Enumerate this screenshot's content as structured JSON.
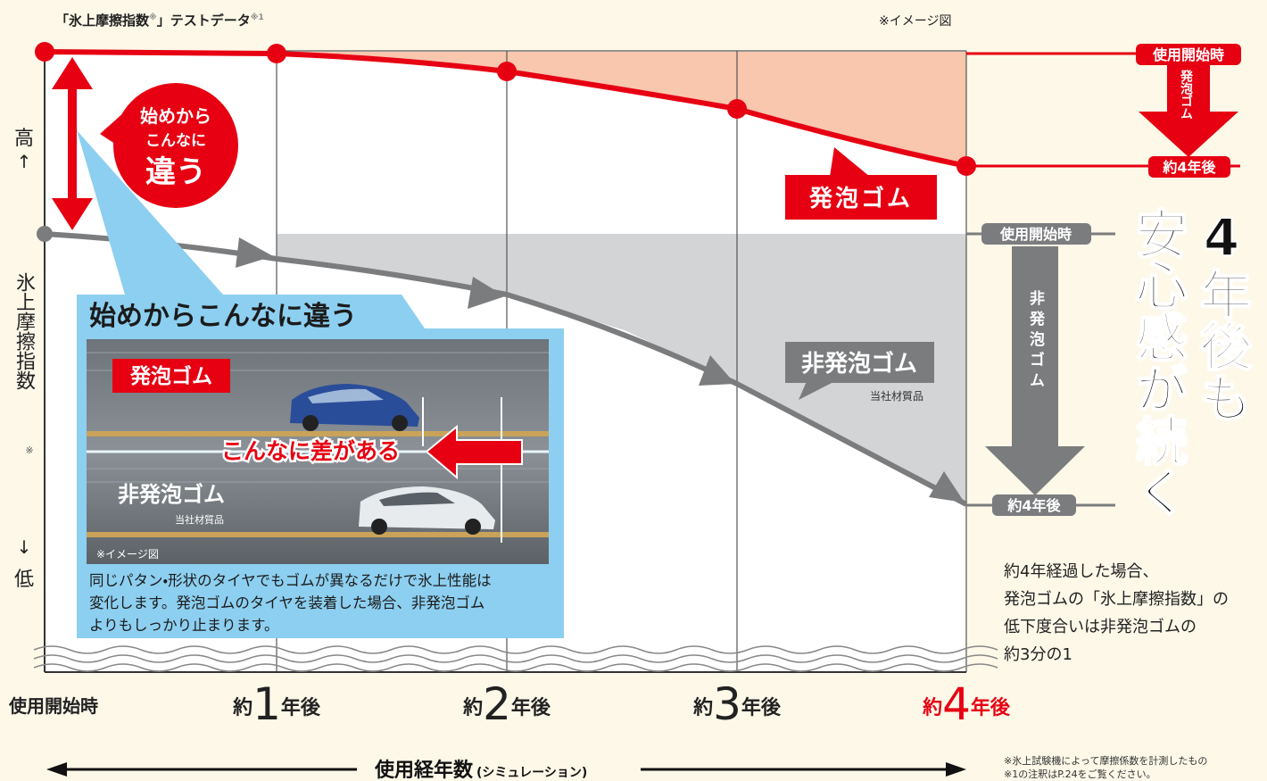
{
  "header": {
    "title_parts": [
      "「氷上摩擦指数",
      "※",
      "」テストデータ",
      "※1"
    ],
    "image_note": "※イメージ図"
  },
  "y_axis": {
    "high": "高",
    "high_arrow": "↑",
    "label": "氷上摩擦指数",
    "label_note": "※",
    "low_arrow": "↓",
    "low": "低"
  },
  "x_axis": {
    "labels": [
      {
        "text": "使用開始時"
      },
      {
        "prefix": "約",
        "number": "1",
        "suffix": "年後"
      },
      {
        "prefix": "約",
        "number": "2",
        "suffix": "年後"
      },
      {
        "prefix": "約",
        "number": "3",
        "suffix": "年後"
      },
      {
        "prefix": "約",
        "number": "4",
        "suffix": "年後"
      }
    ],
    "title": "使用経年数",
    "subtitle": "(シミュレーション)"
  },
  "bubble": {
    "lines": [
      "始めから",
      "こんなに",
      "違う"
    ]
  },
  "series_labels": {
    "foam": "発泡ゴム",
    "non_foam": "非発泡ゴム",
    "non_foam_note": "当社材質品"
  },
  "right_panel": {
    "foam": {
      "start": "使用開始時",
      "arrow": "発泡ゴム",
      "end": "約4年後"
    },
    "non_foam": {
      "start": "使用開始時",
      "arrow": "非発泡ゴム",
      "end": "約4年後"
    },
    "headline": [
      "4年後も",
      "安心感が続く"
    ],
    "note_lines": [
      "約4年経過した場合、",
      "発泡ゴムの「氷上摩擦指数」の",
      "低下度合いは非発泡ゴムの",
      "約3分の1"
    ]
  },
  "inset": {
    "title": "始めからこんなに違う",
    "photo": {
      "foam": "発泡ゴム",
      "gap": "こんなに差がある",
      "non_foam": "非発泡ゴム",
      "non_foam_note": "当社材質品",
      "image_note": "※イメージ図"
    },
    "caption_lines": [
      "同じパタン・形状のタイヤでもゴムが異なるだけで氷上性能は",
      "変化します。発泡ゴムのタイヤを装着した場合、非発泡ゴム",
      "よりもしっかり止まります。"
    ]
  },
  "footnotes": [
    "※氷上試験機によって摩擦係数を計測したもの",
    "※1の注釈はP.24をご覧ください。"
  ]
}
